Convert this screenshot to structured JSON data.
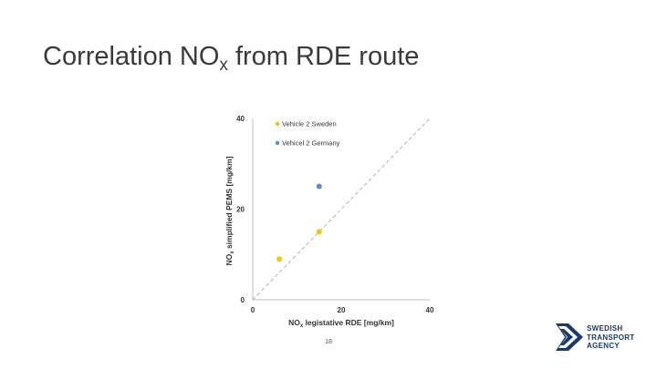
{
  "slide": {
    "title_prefix": "Correlation NO",
    "title_sub": "x",
    "title_suffix": " from RDE route",
    "page_number": "18"
  },
  "logo": {
    "lines": [
      "SWEDISH",
      "TRANSPORT",
      "AGENCY"
    ],
    "color": "#1b3a6b"
  },
  "chart_data": {
    "type": "scatter",
    "xlabel_prefix": "NO",
    "xlabel_sub": "x",
    "xlabel_suffix": " legistative RDE [mg/km]",
    "ylabel_prefix": "NO",
    "ylabel_sub": "x",
    "ylabel_suffix": " simplified PEMS [mg/km]",
    "xlim": [
      0,
      40
    ],
    "ylim": [
      0,
      40
    ],
    "xticks": [
      0,
      20,
      40
    ],
    "yticks": [
      0,
      20,
      40
    ],
    "legend_position": "top-left",
    "reference_line": {
      "style": "dashed",
      "from": [
        0,
        0
      ],
      "to": [
        40,
        40
      ],
      "color": "#aaaaaa"
    },
    "series": [
      {
        "name": "Vehicle 2 Sweden",
        "color": "#f0c419",
        "points": [
          [
            6,
            9
          ],
          [
            15,
            15
          ]
        ]
      },
      {
        "name": "Vehicel 2 Germany",
        "color": "#5b8fc7",
        "points": [
          [
            15,
            25
          ]
        ]
      }
    ]
  }
}
